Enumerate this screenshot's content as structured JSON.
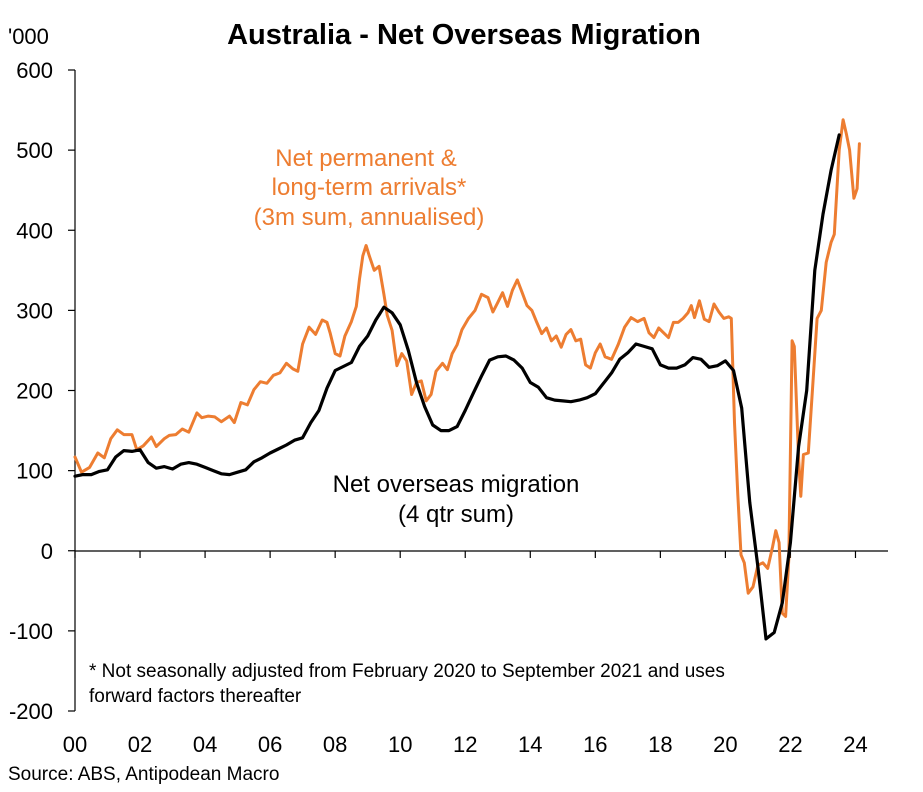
{
  "chart_data": {
    "type": "line",
    "title": "Australia - Net Overseas Migration",
    "ylabel": "'000",
    "ylim": [
      -200,
      600
    ],
    "yticks": [
      -200,
      -100,
      0,
      100,
      200,
      300,
      400,
      500,
      600
    ],
    "xlim": [
      2000,
      2025
    ],
    "xticks": [
      2000,
      2002,
      2004,
      2006,
      2008,
      2010,
      2012,
      2014,
      2016,
      2018,
      2020,
      2022,
      2024
    ],
    "xtick_labels": [
      "00",
      "02",
      "04",
      "06",
      "08",
      "10",
      "12",
      "14",
      "16",
      "18",
      "20",
      "22",
      "24"
    ],
    "grid": false,
    "annotations": {
      "orange_label": [
        "Net permanent &",
        "long-term arrivals*",
        "(3m sum, annualised)"
      ],
      "black_label": [
        "Net overseas migration",
        "(4 qtr sum)"
      ],
      "footnote": [
        "* Not seasonally adjusted from February 2020 to September 2021 and uses",
        "forward factors thereafter"
      ],
      "source": "Source: ABS, Antipodean Macro"
    },
    "series": [
      {
        "id": "nltm",
        "color": "#ED7D31",
        "points": [
          [
            2000.0,
            117
          ],
          [
            2000.2,
            98
          ],
          [
            2000.45,
            104
          ],
          [
            2000.7,
            122
          ],
          [
            2000.9,
            116
          ],
          [
            2001.1,
            140
          ],
          [
            2001.3,
            151
          ],
          [
            2001.5,
            145
          ],
          [
            2001.75,
            145
          ],
          [
            2001.9,
            126
          ],
          [
            2002.1,
            131
          ],
          [
            2002.35,
            142
          ],
          [
            2002.5,
            130
          ],
          [
            2002.75,
            140
          ],
          [
            2002.9,
            144
          ],
          [
            2003.1,
            145
          ],
          [
            2003.3,
            152
          ],
          [
            2003.5,
            148
          ],
          [
            2003.75,
            172
          ],
          [
            2003.9,
            166
          ],
          [
            2004.1,
            168
          ],
          [
            2004.3,
            167
          ],
          [
            2004.5,
            161
          ],
          [
            2004.75,
            168
          ],
          [
            2004.9,
            160
          ],
          [
            2005.1,
            185
          ],
          [
            2005.3,
            182
          ],
          [
            2005.5,
            201
          ],
          [
            2005.7,
            211
          ],
          [
            2005.9,
            209
          ],
          [
            2006.1,
            219
          ],
          [
            2006.3,
            222
          ],
          [
            2006.5,
            234
          ],
          [
            2006.7,
            227
          ],
          [
            2006.85,
            224
          ],
          [
            2007.0,
            258
          ],
          [
            2007.2,
            279
          ],
          [
            2007.4,
            270
          ],
          [
            2007.6,
            288
          ],
          [
            2007.75,
            285
          ],
          [
            2007.85,
            271
          ],
          [
            2008.0,
            246
          ],
          [
            2008.15,
            243
          ],
          [
            2008.3,
            268
          ],
          [
            2008.5,
            286
          ],
          [
            2008.65,
            305
          ],
          [
            2008.75,
            339
          ],
          [
            2008.85,
            368
          ],
          [
            2008.95,
            381
          ],
          [
            2009.05,
            368
          ],
          [
            2009.2,
            350
          ],
          [
            2009.35,
            355
          ],
          [
            2009.5,
            320
          ],
          [
            2009.6,
            294
          ],
          [
            2009.75,
            275
          ],
          [
            2009.9,
            231
          ],
          [
            2010.05,
            246
          ],
          [
            2010.2,
            237
          ],
          [
            2010.35,
            195
          ],
          [
            2010.5,
            210
          ],
          [
            2010.65,
            212
          ],
          [
            2010.8,
            187
          ],
          [
            2010.95,
            195
          ],
          [
            2011.1,
            224
          ],
          [
            2011.3,
            234
          ],
          [
            2011.45,
            226
          ],
          [
            2011.6,
            246
          ],
          [
            2011.75,
            257
          ],
          [
            2011.9,
            276
          ],
          [
            2012.1,
            290
          ],
          [
            2012.3,
            300
          ],
          [
            2012.5,
            320
          ],
          [
            2012.7,
            316
          ],
          [
            2012.85,
            298
          ],
          [
            2013.0,
            310
          ],
          [
            2013.15,
            322
          ],
          [
            2013.3,
            305
          ],
          [
            2013.45,
            325
          ],
          [
            2013.6,
            338
          ],
          [
            2013.75,
            322
          ],
          [
            2013.9,
            306
          ],
          [
            2014.05,
            300
          ],
          [
            2014.2,
            285
          ],
          [
            2014.35,
            271
          ],
          [
            2014.5,
            278
          ],
          [
            2014.65,
            262
          ],
          [
            2014.8,
            268
          ],
          [
            2014.95,
            254
          ],
          [
            2015.1,
            270
          ],
          [
            2015.25,
            276
          ],
          [
            2015.4,
            262
          ],
          [
            2015.55,
            264
          ],
          [
            2015.7,
            232
          ],
          [
            2015.85,
            228
          ],
          [
            2016.0,
            247
          ],
          [
            2016.15,
            258
          ],
          [
            2016.3,
            242
          ],
          [
            2016.5,
            239
          ],
          [
            2016.7,
            257
          ],
          [
            2016.9,
            279
          ],
          [
            2017.1,
            291
          ],
          [
            2017.3,
            286
          ],
          [
            2017.5,
            290
          ],
          [
            2017.65,
            272
          ],
          [
            2017.8,
            266
          ],
          [
            2017.95,
            278
          ],
          [
            2018.1,
            272
          ],
          [
            2018.25,
            266
          ],
          [
            2018.4,
            285
          ],
          [
            2018.55,
            285
          ],
          [
            2018.7,
            290
          ],
          [
            2018.85,
            297
          ],
          [
            2018.95,
            306
          ],
          [
            2019.05,
            291
          ],
          [
            2019.2,
            312
          ],
          [
            2019.35,
            289
          ],
          [
            2019.5,
            286
          ],
          [
            2019.65,
            308
          ],
          [
            2019.8,
            298
          ],
          [
            2019.95,
            290
          ],
          [
            2020.1,
            292
          ],
          [
            2020.18,
            290
          ],
          [
            2020.28,
            160
          ],
          [
            2020.38,
            70
          ],
          [
            2020.48,
            -5
          ],
          [
            2020.58,
            -15
          ],
          [
            2020.7,
            -53
          ],
          [
            2020.85,
            -45
          ],
          [
            2021.0,
            -18
          ],
          [
            2021.15,
            -15
          ],
          [
            2021.3,
            -22
          ],
          [
            2021.45,
            5
          ],
          [
            2021.55,
            25
          ],
          [
            2021.65,
            10
          ],
          [
            2021.75,
            -78
          ],
          [
            2021.85,
            -82
          ],
          [
            2021.95,
            -10
          ],
          [
            2022.05,
            262
          ],
          [
            2022.12,
            255
          ],
          [
            2022.25,
            115
          ],
          [
            2022.32,
            68
          ],
          [
            2022.4,
            120
          ],
          [
            2022.55,
            122
          ],
          [
            2022.7,
            215
          ],
          [
            2022.82,
            290
          ],
          [
            2022.95,
            300
          ],
          [
            2023.1,
            360
          ],
          [
            2023.25,
            385
          ],
          [
            2023.35,
            395
          ],
          [
            2023.5,
            500
          ],
          [
            2023.62,
            538
          ],
          [
            2023.72,
            520
          ],
          [
            2023.82,
            500
          ],
          [
            2023.95,
            440
          ],
          [
            2024.05,
            452
          ],
          [
            2024.12,
            508
          ]
        ]
      },
      {
        "id": "nom",
        "color": "#000000",
        "points": [
          [
            2000.0,
            93
          ],
          [
            2000.25,
            95
          ],
          [
            2000.5,
            95
          ],
          [
            2000.75,
            99
          ],
          [
            2001.0,
            101
          ],
          [
            2001.25,
            117
          ],
          [
            2001.5,
            125
          ],
          [
            2001.75,
            124
          ],
          [
            2002.0,
            126
          ],
          [
            2002.25,
            110
          ],
          [
            2002.5,
            103
          ],
          [
            2002.75,
            105
          ],
          [
            2003.0,
            102
          ],
          [
            2003.25,
            108
          ],
          [
            2003.5,
            110
          ],
          [
            2003.75,
            108
          ],
          [
            2004.0,
            104
          ],
          [
            2004.25,
            100
          ],
          [
            2004.5,
            96
          ],
          [
            2004.75,
            95
          ],
          [
            2005.0,
            98
          ],
          [
            2005.25,
            101
          ],
          [
            2005.5,
            111
          ],
          [
            2005.75,
            116
          ],
          [
            2006.0,
            122
          ],
          [
            2006.25,
            127
          ],
          [
            2006.5,
            132
          ],
          [
            2006.75,
            138
          ],
          [
            2007.0,
            141
          ],
          [
            2007.25,
            160
          ],
          [
            2007.5,
            175
          ],
          [
            2007.75,
            203
          ],
          [
            2008.0,
            225
          ],
          [
            2008.25,
            230
          ],
          [
            2008.5,
            235
          ],
          [
            2008.75,
            255
          ],
          [
            2009.0,
            268
          ],
          [
            2009.25,
            288
          ],
          [
            2009.5,
            304
          ],
          [
            2009.75,
            297
          ],
          [
            2010.0,
            282
          ],
          [
            2010.25,
            250
          ],
          [
            2010.5,
            210
          ],
          [
            2010.75,
            180
          ],
          [
            2011.0,
            157
          ],
          [
            2011.25,
            150
          ],
          [
            2011.5,
            150
          ],
          [
            2011.75,
            155
          ],
          [
            2012.0,
            175
          ],
          [
            2012.25,
            197
          ],
          [
            2012.5,
            218
          ],
          [
            2012.75,
            238
          ],
          [
            2013.0,
            242
          ],
          [
            2013.25,
            243
          ],
          [
            2013.5,
            238
          ],
          [
            2013.75,
            228
          ],
          [
            2014.0,
            210
          ],
          [
            2014.25,
            204
          ],
          [
            2014.5,
            191
          ],
          [
            2014.75,
            188
          ],
          [
            2015.0,
            187
          ],
          [
            2015.25,
            186
          ],
          [
            2015.5,
            188
          ],
          [
            2015.75,
            191
          ],
          [
            2016.0,
            196
          ],
          [
            2016.25,
            209
          ],
          [
            2016.5,
            222
          ],
          [
            2016.75,
            239
          ],
          [
            2017.0,
            247
          ],
          [
            2017.25,
            258
          ],
          [
            2017.5,
            255
          ],
          [
            2017.75,
            252
          ],
          [
            2018.0,
            232
          ],
          [
            2018.25,
            228
          ],
          [
            2018.5,
            228
          ],
          [
            2018.75,
            232
          ],
          [
            2019.0,
            241
          ],
          [
            2019.25,
            239
          ],
          [
            2019.5,
            229
          ],
          [
            2019.75,
            231
          ],
          [
            2020.0,
            237
          ],
          [
            2020.25,
            225
          ],
          [
            2020.5,
            178
          ],
          [
            2020.75,
            60
          ],
          [
            2021.0,
            -20
          ],
          [
            2021.25,
            -110
          ],
          [
            2021.5,
            -102
          ],
          [
            2021.75,
            -65
          ],
          [
            2022.0,
            10
          ],
          [
            2022.25,
            130
          ],
          [
            2022.5,
            200
          ],
          [
            2022.75,
            350
          ],
          [
            2023.0,
            420
          ],
          [
            2023.25,
            475
          ],
          [
            2023.5,
            519
          ]
        ]
      }
    ]
  }
}
